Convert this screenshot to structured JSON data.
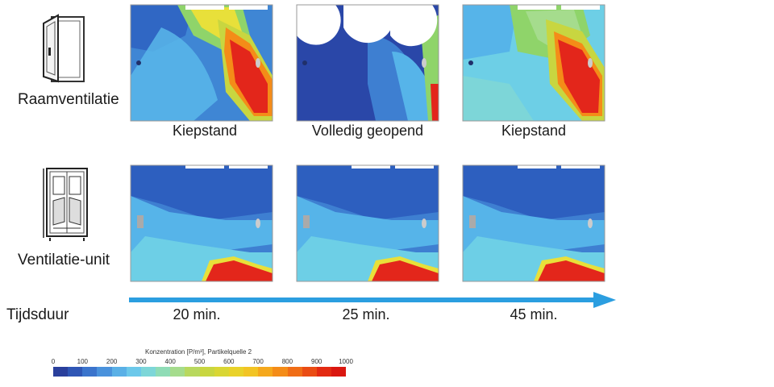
{
  "rows": {
    "window": "Raamventilatie",
    "unit": "Ventilatie-unit"
  },
  "captions": [
    "Kiepstand",
    "Volledig geopend",
    "Kiepstand"
  ],
  "timeline": {
    "label": "Tijdsduur",
    "times": [
      "20 min.",
      "25 min.",
      "45 min."
    ]
  },
  "colorbar": {
    "title": "Konzentration [P/m³], Partikelquelle 2",
    "ticks": [
      "0",
      "100",
      "200",
      "300",
      "400",
      "500",
      "600",
      "700",
      "800",
      "900",
      "1000"
    ],
    "colors": [
      "#2a3f9c",
      "#2f56b5",
      "#3b74cc",
      "#4a92dc",
      "#5ab0e6",
      "#6cc8ea",
      "#7dd6d8",
      "#8fdcb6",
      "#a5dc8d",
      "#b8d85e",
      "#c8d640",
      "#d9d634",
      "#e9d22a",
      "#f2c424",
      "#f5a81c",
      "#f48c18",
      "#f06d16",
      "#ea4c14",
      "#e32a12",
      "#da1710"
    ]
  },
  "palette": {
    "deep_blue": "#2a47a8",
    "blue": "#3e7fd1",
    "light_blue": "#56b4e9",
    "cyan": "#6dcfe6",
    "green": "#8fd46a",
    "yellow": "#e8e03a",
    "red": "#e3261b",
    "arrow": "#2b9ee0"
  }
}
